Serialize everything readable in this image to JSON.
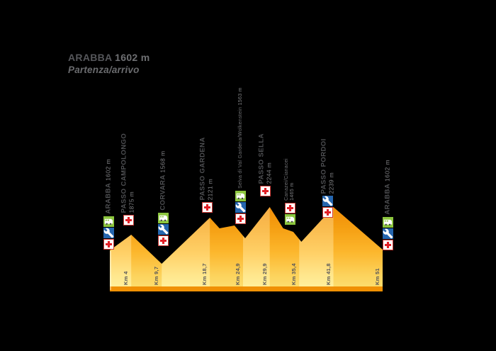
{
  "title": {
    "name": "ARABBA",
    "altitude": "1602 m",
    "subtitle": "Partenza/arrivo"
  },
  "colors": {
    "background": "#000000",
    "profile_top": "#F18A05",
    "profile_mid": "#FFC033",
    "profile_bottom": "#FFDC1E",
    "band_highlight": "#FFFFFF",
    "band_shade": "#E07000",
    "base_strip": "#EF8C00",
    "medical_red": "#E21F26",
    "mechanic_blue": "#2566AF",
    "refreshment_green": "#8CC63E",
    "text_dark": "#4E4F52",
    "text_light": "#808184"
  },
  "chart_data": {
    "type": "area",
    "title": "ARABBA 1602 m — Partenza/arrivo",
    "xlabel": "Km",
    "ylabel": "m",
    "x_range": [
      0,
      51
    ],
    "grid": false,
    "legend": false,
    "waypoints": [
      {
        "km": 0,
        "km_label": "",
        "name": "ARABBA",
        "altitude_label": "1602 m",
        "elevation_m": 1602,
        "services": [
          "refreshment",
          "mechanic",
          "medical"
        ],
        "label_style": "major-single"
      },
      {
        "km": 4,
        "km_label": "Km 4",
        "name": "PASSO CAMPOLONGO",
        "altitude_label": "1875 m",
        "elevation_m": 1875,
        "services": [
          "medical"
        ],
        "label_style": "major-two"
      },
      {
        "km": 9.7,
        "km_label": "Km 9,7",
        "name": "CORVARA",
        "altitude_label": "1568 m",
        "elevation_m": 1568,
        "services": [
          "refreshment",
          "mechanic",
          "medical"
        ],
        "label_style": "major-single"
      },
      {
        "km": 18.7,
        "km_label": "Km 18,7",
        "name": "PASSO GARDENA",
        "altitude_label": "2121 m",
        "elevation_m": 2121,
        "services": [
          "medical"
        ],
        "label_style": "major-two"
      },
      {
        "km": 24.9,
        "km_label": "Km 24,9",
        "name": "Selva di Val Gardena/Wolkenstein",
        "altitude_label": "1563 m",
        "elevation_m": 1563,
        "services": [
          "refreshment",
          "mechanic",
          "medical"
        ],
        "label_style": "minor-single"
      },
      {
        "km": 29.9,
        "km_label": "Km 29,9",
        "name": "PASSO SELLA",
        "altitude_label": "2244 m",
        "elevation_m": 2244,
        "services": [
          "medical"
        ],
        "label_style": "major-two"
      },
      {
        "km": 35.4,
        "km_label": "Km 35,4",
        "name": "Canazei/Cianacei",
        "altitude_label": "1465 m",
        "elevation_m": 1465,
        "services": [
          "medical",
          "refreshment"
        ],
        "label_style": "minor-two"
      },
      {
        "km": 41.8,
        "km_label": "Km 41,8",
        "name": "PASSO PORDOI",
        "altitude_label": "2239 m",
        "elevation_m": 2239,
        "services": [
          "mechanic",
          "medical"
        ],
        "label_style": "major-two"
      },
      {
        "km": 51,
        "km_label": "Km 51",
        "name": "ARABBA",
        "altitude_label": "1602 m",
        "elevation_m": 1602,
        "services": [
          "refreshment",
          "mechanic",
          "medical"
        ],
        "label_style": "major-single"
      }
    ]
  }
}
